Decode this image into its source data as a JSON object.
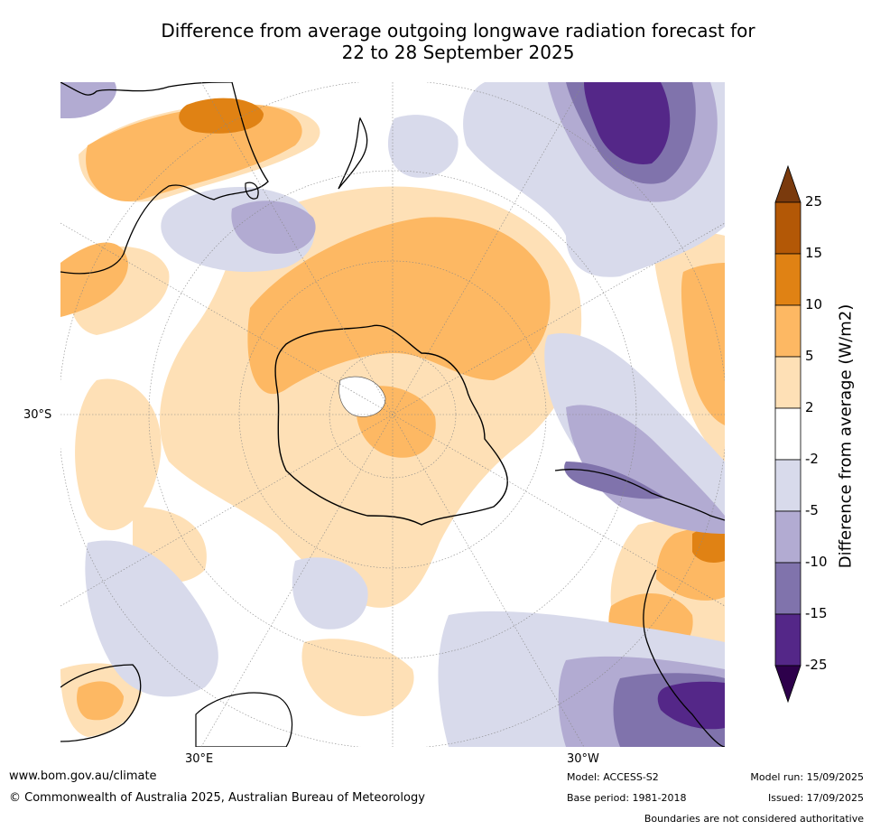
{
  "title_line1": "Difference from average outgoing longwave radiation forecast for",
  "title_line2": "22 to 28 September 2025",
  "map": {
    "lat_label": "30°S",
    "lon_labels": {
      "east": "30°E",
      "west": "30°W"
    }
  },
  "colorbar": {
    "label": "Difference from average (W/m2)",
    "ticks": [
      "25",
      "15",
      "10",
      "5",
      "2",
      "-2",
      "-5",
      "-10",
      "-15",
      "-25"
    ],
    "colors": [
      "#7a3a0d",
      "#b35806",
      "#e08214",
      "#fdb863",
      "#fee0b6",
      "#ffffff",
      "#d8daeb",
      "#b2abd2",
      "#8073ac",
      "#542788",
      "#2d004b"
    ]
  },
  "footer": {
    "url": "www.bom.gov.au/climate",
    "copyright": "© Commonwealth of Australia 2025, Australian Bureau of Meteorology",
    "model": "Model: ACCESS-S2",
    "base_period": "Base period: 1981-2018",
    "model_run": "Model run: 15/09/2025",
    "issued": "Issued: 17/09/2025",
    "disclaimer": "Boundaries are not considered authoritative"
  }
}
